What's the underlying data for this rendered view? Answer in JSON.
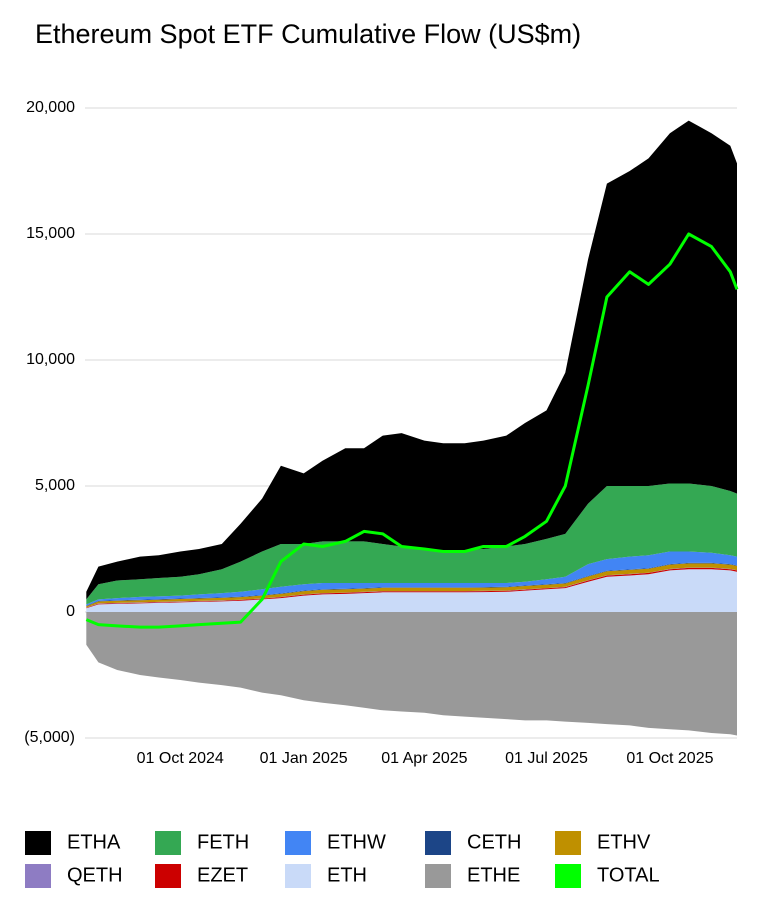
{
  "chart_data": {
    "type": "area",
    "stacked": true,
    "title": "Ethereum Spot ETF Cumulative Flow (US$m)",
    "x": [
      "2024-07-23",
      "2024-08-01",
      "2024-08-15",
      "2024-09-01",
      "2024-09-15",
      "2024-10-01",
      "2024-10-15",
      "2024-11-01",
      "2024-11-15",
      "2024-12-01",
      "2024-12-15",
      "2025-01-01",
      "2025-01-15",
      "2025-02-01",
      "2025-02-15",
      "2025-03-01",
      "2025-03-15",
      "2025-04-01",
      "2025-04-15",
      "2025-05-01",
      "2025-05-15",
      "2025-06-01",
      "2025-06-15",
      "2025-07-01",
      "2025-07-15",
      "2025-08-01",
      "2025-08-15",
      "2025-09-01",
      "2025-09-15",
      "2025-10-01",
      "2025-10-15",
      "2025-11-01",
      "2025-11-15",
      "2025-11-20"
    ],
    "xlim": [
      "2024-07-22",
      "2025-11-20"
    ],
    "xticks": [
      {
        "value": "2024-10-01",
        "label": "01 Oct 2024"
      },
      {
        "value": "2025-01-01",
        "label": "01 Jan 2025"
      },
      {
        "value": "2025-04-01",
        "label": "01 Apr 2025"
      },
      {
        "value": "2025-07-01",
        "label": "01 Jul 2025"
      },
      {
        "value": "2025-10-01",
        "label": "01 Oct 2025"
      }
    ],
    "ylim": [
      -5000,
      20000
    ],
    "yticks": [
      {
        "value": -5000,
        "label": "(5,000)"
      },
      0,
      {
        "value": 5000,
        "label": "5,000"
      },
      {
        "value": 10000,
        "label": "10,000"
      },
      {
        "value": 15000,
        "label": "15,000"
      },
      {
        "value": 20000,
        "label": "20,000"
      }
    ],
    "grid": true,
    "legend": "bottom",
    "series": [
      {
        "name": "ETHA",
        "color": "#000000",
        "values": [
          300,
          700,
          750,
          900,
          900,
          1000,
          1000,
          1000,
          1500,
          2100,
          3100,
          2800,
          3200,
          3700,
          3700,
          4300,
          4500,
          4300,
          4250,
          4250,
          4300,
          4400,
          4800,
          5100,
          6400,
          9700,
          12000,
          12500,
          13000,
          13900,
          14400,
          14000,
          13700,
          13100
        ]
      },
      {
        "name": "FETH",
        "color": "#34a853",
        "values": [
          200,
          600,
          700,
          700,
          730,
          750,
          800,
          950,
          1200,
          1500,
          1700,
          1600,
          1650,
          1650,
          1650,
          1550,
          1450,
          1350,
          1300,
          1300,
          1350,
          1450,
          1500,
          1600,
          1700,
          2400,
          2900,
          2800,
          2750,
          2700,
          2700,
          2650,
          2550,
          2500
        ]
      },
      {
        "name": "ETHW",
        "color": "#4285f4",
        "values": [
          50,
          60,
          85,
          110,
          110,
          115,
          145,
          170,
          190,
          230,
          260,
          250,
          250,
          230,
          200,
          170,
          170,
          170,
          170,
          170,
          160,
          150,
          150,
          200,
          250,
          470,
          460,
          510,
          510,
          500,
          450,
          400,
          350,
          350
        ]
      },
      {
        "name": "CETH",
        "color": "#1c4587",
        "values": [
          20,
          20,
          20,
          20,
          20,
          20,
          20,
          20,
          20,
          20,
          20,
          20,
          20,
          20,
          20,
          20,
          20,
          20,
          20,
          20,
          20,
          20,
          20,
          20,
          20,
          20,
          20,
          20,
          20,
          20,
          20,
          20,
          20,
          20
        ]
      },
      {
        "name": "ETHV",
        "color": "#bf9000",
        "values": [
          50,
          80,
          85,
          90,
          90,
          95,
          95,
          100,
          100,
          110,
          120,
          130,
          130,
          130,
          130,
          130,
          130,
          130,
          130,
          130,
          130,
          130,
          130,
          130,
          130,
          150,
          160,
          160,
          160,
          170,
          170,
          170,
          170,
          170
        ]
      },
      {
        "name": "QETH",
        "color": "#8e7cc3",
        "values": [
          10,
          10,
          10,
          10,
          10,
          10,
          10,
          10,
          10,
          10,
          10,
          10,
          10,
          10,
          10,
          10,
          10,
          10,
          10,
          10,
          10,
          10,
          10,
          10,
          10,
          10,
          10,
          10,
          10,
          10,
          10,
          10,
          10,
          10
        ]
      },
      {
        "name": "EZET",
        "color": "#cc0000",
        "values": [
          20,
          30,
          30,
          30,
          30,
          30,
          30,
          30,
          30,
          30,
          40,
          40,
          40,
          40,
          40,
          40,
          40,
          40,
          40,
          40,
          40,
          40,
          40,
          40,
          40,
          50,
          50,
          50,
          50,
          50,
          50,
          50,
          50,
          50
        ]
      },
      {
        "name": "ETH",
        "color": "#c9daf8",
        "values": [
          150,
          300,
          320,
          340,
          360,
          380,
          400,
          420,
          450,
          500,
          550,
          650,
          700,
          720,
          750,
          780,
          780,
          780,
          780,
          780,
          790,
          800,
          850,
          900,
          950,
          1200,
          1400,
          1450,
          1500,
          1650,
          1700,
          1700,
          1650,
          1600
        ]
      },
      {
        "name": "ETHE",
        "color": "#999999",
        "values": [
          -1300,
          -2000,
          -2300,
          -2500,
          -2600,
          -2700,
          -2800,
          -2900,
          -3000,
          -3200,
          -3300,
          -3500,
          -3600,
          -3700,
          -3800,
          -3900,
          -3950,
          -4000,
          -4100,
          -4150,
          -4200,
          -4250,
          -4300,
          -4300,
          -4350,
          -4400,
          -4450,
          -4500,
          -4600,
          -4650,
          -4700,
          -4800,
          -4850,
          -4900
        ]
      },
      {
        "name": "TOTAL",
        "color": "#00ff00",
        "type": "line",
        "values": [
          -300,
          -500,
          -550,
          -600,
          -600,
          -550,
          -500,
          -450,
          -400,
          500,
          2000,
          2700,
          2600,
          2800,
          3200,
          3100,
          2600,
          2500,
          2400,
          2400,
          2600,
          2600,
          3000,
          3600,
          5000,
          9000,
          12500,
          13500,
          13000,
          13800,
          15000,
          14500,
          13500,
          12800
        ]
      }
    ]
  }
}
